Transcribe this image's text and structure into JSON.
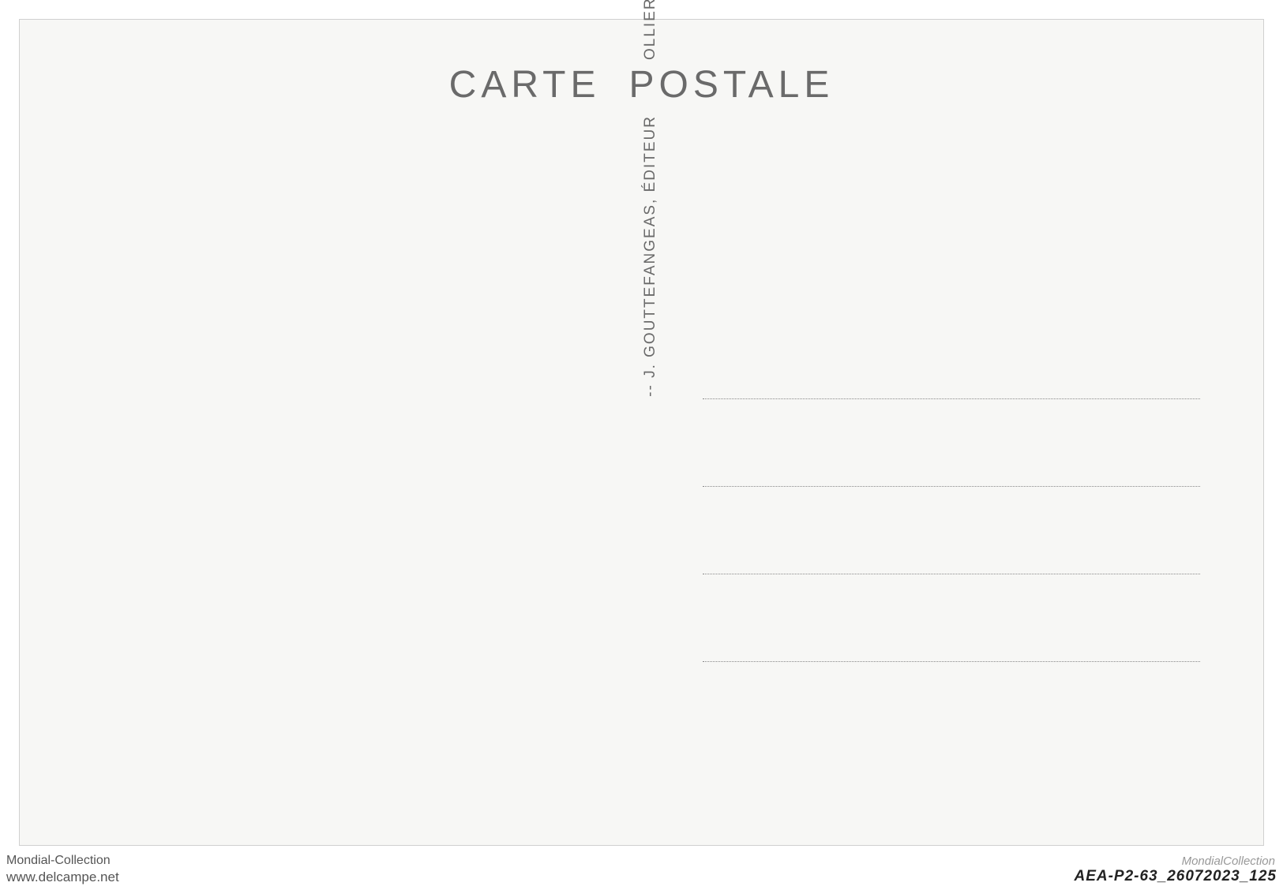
{
  "postcard": {
    "title_left": "CARTE",
    "title_right": "POSTALE",
    "publisher_line": "-- J. GOUTTEFANGEAS, ÉDITEUR",
    "location_line": "OLLIERGUES (P.-DE-D.) --",
    "address_line_count": 4,
    "colors": {
      "background": "#f7f7f5",
      "text": "#6a6a6a",
      "dotted_line": "#888888",
      "border": "#d0d0d0"
    },
    "typography": {
      "title_fontsize": 48,
      "title_letterspacing": 6,
      "divider_fontsize": 19,
      "divider_letterspacing": 3
    }
  },
  "footer": {
    "left_top": "Mondial-Collection",
    "left_bottom": "www.delcampe.net",
    "right": "AEA-P2-63_26072023_125",
    "watermark": "MondialCollection"
  }
}
